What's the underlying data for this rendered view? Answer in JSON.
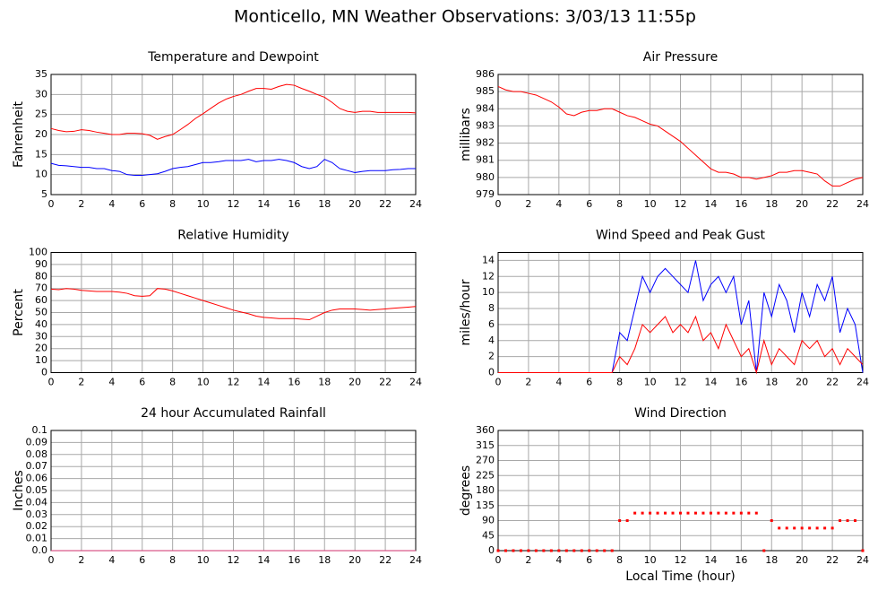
{
  "title": "Monticello, MN Weather Observations: 3/03/13 11:55p",
  "chart_data": [
    {
      "type": "line",
      "title": "Temperature and Dewpoint",
      "ylabel": "Fahrenheit",
      "grid": true,
      "xlim": [
        0,
        24
      ],
      "xticks": [
        0,
        2,
        4,
        6,
        8,
        10,
        12,
        14,
        16,
        18,
        20,
        22,
        24
      ],
      "ylim": [
        5,
        35
      ],
      "yticks": [
        5,
        10,
        15,
        20,
        25,
        30,
        35
      ],
      "x": [
        0,
        0.5,
        1,
        1.5,
        2,
        2.5,
        3,
        3.5,
        4,
        4.5,
        5,
        5.5,
        6,
        6.5,
        7,
        7.5,
        8,
        8.5,
        9,
        9.5,
        10,
        10.5,
        11,
        11.5,
        12,
        12.5,
        13,
        13.5,
        14,
        14.5,
        15,
        15.5,
        16,
        16.5,
        17,
        17.5,
        18,
        18.5,
        19,
        19.5,
        20,
        20.5,
        21,
        21.5,
        22,
        22.5,
        23,
        23.5,
        24
      ],
      "series": [
        {
          "color": "#ff0000",
          "values": [
            21.5,
            21,
            20.7,
            20.8,
            21.2,
            21,
            20.6,
            20.3,
            20,
            20,
            20.3,
            20.3,
            20.2,
            19.8,
            18.8,
            19.5,
            20,
            21.2,
            22.5,
            24,
            25.2,
            26.5,
            27.8,
            28.8,
            29.5,
            30,
            30.8,
            31.5,
            31.5,
            31.3,
            32,
            32.5,
            32.3,
            31.5,
            30.8,
            30,
            29.3,
            28,
            26.5,
            25.8,
            25.5,
            25.8,
            25.8,
            25.5,
            25.5,
            25.5,
            25.5,
            25.5,
            25.4
          ]
        },
        {
          "color": "#0000ff",
          "values": [
            12.8,
            12.3,
            12.2,
            12,
            11.8,
            11.8,
            11.5,
            11.5,
            11,
            10.8,
            10,
            9.8,
            9.8,
            10,
            10.2,
            10.8,
            11.5,
            11.8,
            12,
            12.5,
            13,
            13,
            13.2,
            13.5,
            13.5,
            13.5,
            13.8,
            13.2,
            13.5,
            13.5,
            13.8,
            13.5,
            13,
            12,
            11.5,
            12,
            13.8,
            13,
            11.5,
            11,
            10.5,
            10.8,
            11,
            11,
            11,
            11.2,
            11.3,
            11.5,
            11.5
          ]
        }
      ]
    },
    {
      "type": "line",
      "title": "Air Pressure",
      "ylabel": "millibars",
      "grid": true,
      "xlim": [
        0,
        24
      ],
      "xticks": [
        0,
        2,
        4,
        6,
        8,
        10,
        12,
        14,
        16,
        18,
        20,
        22,
        24
      ],
      "ylim": [
        979,
        986
      ],
      "yticks": [
        979,
        980,
        981,
        982,
        983,
        984,
        985,
        986
      ],
      "x": [
        0,
        0.5,
        1,
        1.5,
        2,
        2.5,
        3,
        3.5,
        4,
        4.5,
        5,
        5.5,
        6,
        6.5,
        7,
        7.5,
        8,
        8.5,
        9,
        9.5,
        10,
        10.5,
        11,
        11.5,
        12,
        12.5,
        13,
        13.5,
        14,
        14.5,
        15,
        15.5,
        16,
        16.5,
        17,
        17.5,
        18,
        18.5,
        19,
        19.5,
        20,
        20.5,
        21,
        21.5,
        22,
        22.5,
        23,
        23.5,
        24
      ],
      "series": [
        {
          "color": "#ff0000",
          "values": [
            985.3,
            985.1,
            985,
            985,
            984.9,
            984.8,
            984.6,
            984.4,
            984.1,
            983.7,
            983.6,
            983.8,
            983.9,
            983.9,
            984,
            984,
            983.8,
            983.6,
            983.5,
            983.3,
            983.1,
            983,
            982.7,
            982.4,
            982.1,
            981.7,
            981.3,
            980.9,
            980.5,
            980.3,
            980.3,
            980.2,
            980,
            980,
            979.9,
            980,
            980.1,
            980.3,
            980.3,
            980.4,
            980.4,
            980.3,
            980.2,
            979.8,
            979.5,
            979.5,
            979.7,
            979.9,
            980
          ]
        }
      ]
    },
    {
      "type": "line",
      "title": "Relative Humidity",
      "ylabel": "Percent",
      "grid": true,
      "xlim": [
        0,
        24
      ],
      "xticks": [
        0,
        2,
        4,
        6,
        8,
        10,
        12,
        14,
        16,
        18,
        20,
        22,
        24
      ],
      "ylim": [
        0,
        100
      ],
      "yticks": [
        0,
        10,
        20,
        30,
        40,
        50,
        60,
        70,
        80,
        90,
        100
      ],
      "x": [
        0,
        0.5,
        1,
        1.5,
        2,
        2.5,
        3,
        3.5,
        4,
        4.5,
        5,
        5.5,
        6,
        6.5,
        7,
        7.5,
        8,
        8.5,
        9,
        9.5,
        10,
        10.5,
        11,
        11.5,
        12,
        12.5,
        13,
        13.5,
        14,
        14.5,
        15,
        15.5,
        16,
        16.5,
        17,
        17.5,
        18,
        18.5,
        19,
        19.5,
        20,
        20.5,
        21,
        21.5,
        22,
        22.5,
        23,
        23.5,
        24
      ],
      "series": [
        {
          "color": "#ff0000",
          "values": [
            69.5,
            69,
            70,
            69.5,
            68.5,
            68,
            67.5,
            67.5,
            67.5,
            67,
            66,
            64,
            63.5,
            64,
            70,
            69.5,
            68,
            66,
            64,
            62,
            60,
            58,
            56,
            54,
            52,
            50.5,
            49,
            47,
            46,
            45.5,
            45,
            45,
            45,
            44.5,
            44,
            47,
            50,
            52,
            53,
            53,
            53,
            52.5,
            52,
            52.5,
            53,
            53.5,
            54,
            54.5,
            55
          ]
        }
      ]
    },
    {
      "type": "line",
      "title": "Wind Speed and Peak Gust",
      "ylabel": "miles/hour",
      "grid": true,
      "xlim": [
        0,
        24
      ],
      "xticks": [
        0,
        2,
        4,
        6,
        8,
        10,
        12,
        14,
        16,
        18,
        20,
        22,
        24
      ],
      "ylim": [
        0,
        15
      ],
      "yticks": [
        0,
        2,
        4,
        6,
        8,
        10,
        12,
        14
      ],
      "x": [
        0,
        0.5,
        1,
        1.5,
        2,
        2.5,
        3,
        3.5,
        4,
        4.5,
        5,
        5.5,
        6,
        6.5,
        7,
        7.5,
        8,
        8.5,
        9,
        9.5,
        10,
        10.5,
        11,
        11.5,
        12,
        12.5,
        13,
        13.5,
        14,
        14.5,
        15,
        15.5,
        16,
        16.5,
        17,
        17.5,
        18,
        18.5,
        19,
        19.5,
        20,
        20.5,
        21,
        21.5,
        22,
        22.5,
        23,
        23.5,
        24
      ],
      "series": [
        {
          "color": "#0000ff",
          "values": [
            0,
            0,
            0,
            0,
            0,
            0,
            0,
            0,
            0,
            0,
            0,
            0,
            0,
            0,
            0,
            0,
            5,
            4,
            8,
            12,
            10,
            12,
            13,
            12,
            11,
            10,
            14,
            9,
            11,
            12,
            10,
            12,
            6,
            9,
            0,
            10,
            7,
            11,
            9,
            5,
            10,
            7,
            11,
            9,
            12,
            5,
            8,
            6,
            0
          ]
        },
        {
          "color": "#ff0000",
          "values": [
            0,
            0,
            0,
            0,
            0,
            0,
            0,
            0,
            0,
            0,
            0,
            0,
            0,
            0,
            0,
            0,
            2,
            1,
            3,
            6,
            5,
            6,
            7,
            5,
            6,
            5,
            7,
            4,
            5,
            3,
            6,
            4,
            2,
            3,
            0,
            4,
            1,
            3,
            2,
            1,
            4,
            3,
            4,
            2,
            3,
            1,
            3,
            2,
            1
          ]
        }
      ]
    },
    {
      "type": "line",
      "title": "24 hour Accumulated Rainfall",
      "ylabel": "Inches",
      "grid": true,
      "xlim": [
        0,
        24
      ],
      "xticks": [
        0,
        2,
        4,
        6,
        8,
        10,
        12,
        14,
        16,
        18,
        20,
        22,
        24
      ],
      "ylim": [
        0,
        0.1
      ],
      "yticks": [
        {
          "value": 0,
          "label": "0.0"
        },
        0.01,
        0.02,
        0.03,
        0.04,
        0.05,
        0.06,
        0.07,
        0.08,
        0.09,
        0.1
      ],
      "x": [
        0,
        24
      ],
      "series": [
        {
          "color": "#d0306e",
          "values": [
            0,
            0
          ]
        }
      ]
    },
    {
      "type": "scatter",
      "title": "Wind Direction",
      "ylabel": "degrees",
      "xlabel": "Local Time (hour)",
      "grid": true,
      "xlim": [
        0,
        24
      ],
      "xticks": [
        0,
        2,
        4,
        6,
        8,
        10,
        12,
        14,
        16,
        18,
        20,
        22,
        24
      ],
      "ylim": [
        0,
        360
      ],
      "yticks": [
        0,
        45,
        90,
        135,
        180,
        225,
        270,
        315,
        360
      ],
      "x": [
        0,
        0.5,
        1,
        1.5,
        2,
        2.5,
        3,
        3.5,
        4,
        4.5,
        5,
        5.5,
        6,
        6.5,
        7,
        7.5,
        8,
        8.5,
        9,
        9.5,
        10,
        10.5,
        11,
        11.5,
        12,
        12.5,
        13,
        13.5,
        14,
        14.5,
        15,
        15.5,
        16,
        16.5,
        17,
        17.5,
        18,
        18.5,
        19,
        19.5,
        20,
        20.5,
        21,
        21.5,
        22,
        22.5,
        23,
        23.5,
        24
      ],
      "series": [
        {
          "color": "#ff0000",
          "values": [
            0,
            0,
            0,
            0,
            0,
            0,
            0,
            0,
            0,
            0,
            0,
            0,
            0,
            0,
            0,
            0,
            90,
            90,
            112.5,
            112.5,
            112.5,
            112.5,
            112.5,
            112.5,
            112.5,
            112.5,
            112.5,
            112.5,
            112.5,
            112.5,
            112.5,
            112.5,
            112.5,
            112.5,
            112.5,
            0,
            90,
            67.5,
            67.5,
            67.5,
            67.5,
            67.5,
            67.5,
            67.5,
            67.5,
            90,
            90,
            90,
            0
          ]
        }
      ]
    }
  ]
}
